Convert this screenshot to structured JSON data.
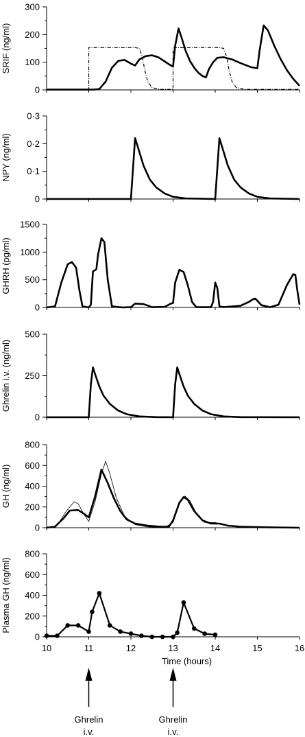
{
  "chart_data": [
    {
      "type": "line",
      "ylabel": "SRIF (ng/ml)",
      "ylim": [
        0,
        300
      ],
      "yticks": [
        0,
        100,
        200,
        300
      ],
      "xlim": [
        10,
        16
      ],
      "series": [
        {
          "style": "solid",
          "points": [
            [
              10,
              1
            ],
            [
              10.8,
              1
            ],
            [
              11.1,
              1
            ],
            [
              11.25,
              3
            ],
            [
              11.4,
              30
            ],
            [
              11.55,
              80
            ],
            [
              11.7,
              105
            ],
            [
              11.85,
              108
            ],
            [
              12.0,
              95
            ],
            [
              12.1,
              88
            ],
            [
              12.2,
              110
            ],
            [
              12.35,
              122
            ],
            [
              12.5,
              125
            ],
            [
              12.65,
              118
            ],
            [
              12.8,
              103
            ],
            [
              12.95,
              88
            ],
            [
              13.0,
              85
            ],
            [
              13.05,
              160
            ],
            [
              13.13,
              222
            ],
            [
              13.2,
              190
            ],
            [
              13.3,
              140
            ],
            [
              13.4,
              105
            ],
            [
              13.5,
              80
            ],
            [
              13.6,
              62
            ],
            [
              13.7,
              50
            ],
            [
              13.78,
              45
            ],
            [
              13.85,
              75
            ],
            [
              13.95,
              100
            ],
            [
              14.05,
              116
            ],
            [
              14.2,
              118
            ],
            [
              14.4,
              110
            ],
            [
              14.6,
              97
            ],
            [
              14.85,
              82
            ],
            [
              15.0,
              78
            ],
            [
              15.05,
              140
            ],
            [
              15.15,
              233
            ],
            [
              15.25,
              215
            ],
            [
              15.4,
              160
            ],
            [
              15.55,
              112
            ],
            [
              15.7,
              72
            ],
            [
              15.85,
              40
            ],
            [
              16.0,
              15
            ]
          ]
        },
        {
          "style": "dashdot",
          "points": [
            [
              10,
              1
            ],
            [
              11.0,
              1
            ],
            [
              11.0,
              153
            ],
            [
              12.1,
              153
            ],
            [
              12.2,
              150
            ],
            [
              12.27,
              120
            ],
            [
              12.33,
              70
            ],
            [
              12.4,
              30
            ],
            [
              12.5,
              8
            ],
            [
              12.7,
              2
            ],
            [
              13.0,
              2
            ],
            [
              13.0,
              153
            ],
            [
              14.1,
              153
            ],
            [
              14.2,
              150
            ],
            [
              14.27,
              120
            ],
            [
              14.33,
              70
            ],
            [
              14.4,
              30
            ],
            [
              14.5,
              8
            ],
            [
              14.7,
              2
            ],
            [
              16,
              2
            ]
          ]
        }
      ]
    },
    {
      "type": "line",
      "ylabel": "NPY (ng/ml)",
      "ylim": [
        0,
        0.3
      ],
      "yticks": [
        0,
        0.1,
        0.2,
        0.3
      ],
      "ytick_labels": [
        "0",
        "0·1",
        "0·2",
        "0·3"
      ],
      "xlim": [
        10,
        16
      ],
      "series": [
        {
          "style": "solid",
          "points": [
            [
              10,
              0
            ],
            [
              12.0,
              0
            ],
            [
              12.1,
              0.22
            ],
            [
              12.2,
              0.17
            ],
            [
              12.3,
              0.12
            ],
            [
              12.45,
              0.07
            ],
            [
              12.6,
              0.042
            ],
            [
              12.8,
              0.02
            ],
            [
              13.0,
              0.008
            ],
            [
              13.3,
              0.002
            ],
            [
              14.0,
              0
            ],
            [
              14.1,
              0.22
            ],
            [
              14.2,
              0.17
            ],
            [
              14.3,
              0.12
            ],
            [
              14.45,
              0.07
            ],
            [
              14.6,
              0.042
            ],
            [
              14.8,
              0.02
            ],
            [
              15.0,
              0.008
            ],
            [
              15.3,
              0.002
            ],
            [
              16,
              0
            ]
          ]
        }
      ]
    },
    {
      "type": "line",
      "ylabel": "GHRH (pg/ml)",
      "ylim": [
        0,
        1500
      ],
      "yticks": [
        0,
        500,
        1000,
        1500
      ],
      "xlim": [
        10,
        16
      ],
      "series": [
        {
          "style": "solid",
          "points": [
            [
              10,
              0
            ],
            [
              10.2,
              20
            ],
            [
              10.35,
              450
            ],
            [
              10.5,
              780
            ],
            [
              10.6,
              820
            ],
            [
              10.7,
              720
            ],
            [
              10.78,
              300
            ],
            [
              10.85,
              20
            ],
            [
              11.0,
              0
            ],
            [
              11.05,
              50
            ],
            [
              11.1,
              650
            ],
            [
              11.18,
              690
            ],
            [
              11.22,
              950
            ],
            [
              11.3,
              1250
            ],
            [
              11.37,
              1180
            ],
            [
              11.45,
              500
            ],
            [
              11.55,
              20
            ],
            [
              11.8,
              0
            ],
            [
              12.0,
              5
            ],
            [
              12.1,
              70
            ],
            [
              12.3,
              60
            ],
            [
              12.45,
              20
            ],
            [
              12.5,
              5
            ],
            [
              12.8,
              10
            ],
            [
              12.95,
              70
            ],
            [
              13.0,
              80
            ],
            [
              13.05,
              450
            ],
            [
              13.15,
              680
            ],
            [
              13.25,
              640
            ],
            [
              13.35,
              400
            ],
            [
              13.45,
              100
            ],
            [
              13.55,
              5
            ],
            [
              13.9,
              5
            ],
            [
              13.95,
              100
            ],
            [
              14.0,
              450
            ],
            [
              14.05,
              350
            ],
            [
              14.1,
              20
            ],
            [
              14.2,
              5
            ],
            [
              14.6,
              30
            ],
            [
              14.8,
              100
            ],
            [
              14.9,
              150
            ],
            [
              14.95,
              160
            ],
            [
              15.0,
              120
            ],
            [
              15.1,
              40
            ],
            [
              15.3,
              5
            ],
            [
              15.5,
              50
            ],
            [
              15.7,
              400
            ],
            [
              15.85,
              600
            ],
            [
              15.9,
              590
            ],
            [
              15.95,
              300
            ],
            [
              16.0,
              50
            ]
          ]
        }
      ]
    },
    {
      "type": "line",
      "ylabel": "Ghrelin i.v. (ng/ml)",
      "ylim": [
        0,
        500
      ],
      "yticks": [
        0,
        250,
        500
      ],
      "xlim": [
        10,
        16
      ],
      "series": [
        {
          "style": "solid",
          "points": [
            [
              10,
              0
            ],
            [
              11.0,
              0
            ],
            [
              11.05,
              200
            ],
            [
              11.1,
              300
            ],
            [
              11.15,
              260
            ],
            [
              11.25,
              185
            ],
            [
              11.35,
              130
            ],
            [
              11.5,
              80
            ],
            [
              11.7,
              40
            ],
            [
              11.9,
              18
            ],
            [
              12.2,
              5
            ],
            [
              12.6,
              1
            ],
            [
              13.0,
              0
            ],
            [
              13.05,
              200
            ],
            [
              13.1,
              300
            ],
            [
              13.15,
              260
            ],
            [
              13.25,
              185
            ],
            [
              13.35,
              130
            ],
            [
              13.5,
              80
            ],
            [
              13.7,
              40
            ],
            [
              13.9,
              18
            ],
            [
              14.2,
              5
            ],
            [
              14.6,
              1
            ],
            [
              16,
              0
            ]
          ]
        }
      ]
    },
    {
      "type": "line",
      "ylabel": "GH (ng/ml)",
      "ylim": [
        0,
        800
      ],
      "yticks": [
        0,
        200,
        400,
        600,
        800
      ],
      "xlim": [
        10,
        16
      ],
      "series": [
        {
          "style": "solid",
          "points": [
            [
              10,
              0
            ],
            [
              10.2,
              10
            ],
            [
              10.4,
              90
            ],
            [
              10.55,
              165
            ],
            [
              10.75,
              170
            ],
            [
              10.9,
              130
            ],
            [
              11.0,
              100
            ],
            [
              11.15,
              300
            ],
            [
              11.3,
              560
            ],
            [
              11.45,
              430
            ],
            [
              11.6,
              280
            ],
            [
              11.75,
              160
            ],
            [
              11.9,
              80
            ],
            [
              12.1,
              40
            ],
            [
              12.4,
              20
            ],
            [
              12.7,
              10
            ],
            [
              12.9,
              10
            ],
            [
              13.0,
              70
            ],
            [
              13.15,
              240
            ],
            [
              13.25,
              295
            ],
            [
              13.35,
              270
            ],
            [
              13.5,
              160
            ],
            [
              13.7,
              70
            ],
            [
              13.9,
              40
            ],
            [
              14.1,
              40
            ],
            [
              14.3,
              20
            ],
            [
              14.6,
              10
            ],
            [
              15.0,
              5
            ],
            [
              16,
              0
            ]
          ]
        },
        {
          "style": "thin",
          "points": [
            [
              10,
              0
            ],
            [
              10.25,
              20
            ],
            [
              10.45,
              150
            ],
            [
              10.65,
              250
            ],
            [
              10.75,
              230
            ],
            [
              10.9,
              120
            ],
            [
              11.0,
              60
            ],
            [
              11.15,
              250
            ],
            [
              11.3,
              520
            ],
            [
              11.4,
              640
            ],
            [
              11.5,
              520
            ],
            [
              11.65,
              290
            ],
            [
              11.85,
              110
            ],
            [
              12.1,
              30
            ],
            [
              12.4,
              8
            ],
            [
              12.8,
              2
            ],
            [
              13.0,
              50
            ],
            [
              13.15,
              230
            ],
            [
              13.28,
              305
            ],
            [
              13.4,
              260
            ],
            [
              13.55,
              140
            ],
            [
              13.75,
              50
            ],
            [
              14.0,
              50
            ],
            [
              14.3,
              15
            ],
            [
              14.6,
              5
            ],
            [
              16,
              0
            ]
          ]
        }
      ]
    },
    {
      "type": "scatter",
      "ylabel": "Plasma GH (ng/ml)",
      "ylim": [
        0,
        800
      ],
      "yticks": [
        0,
        200,
        400,
        600,
        800
      ],
      "xlim": [
        10,
        16
      ],
      "xticks": [
        10,
        11,
        12,
        13,
        14,
        15,
        16
      ],
      "xlabel": "Time (hours)",
      "series": [
        {
          "style": "markers",
          "points": [
            [
              10,
              10
            ],
            [
              10.25,
              10
            ],
            [
              10.5,
              110
            ],
            [
              10.75,
              110
            ],
            [
              11.0,
              50
            ],
            [
              11.08,
              240
            ],
            [
              11.25,
              420
            ],
            [
              11.5,
              110
            ],
            [
              11.75,
              50
            ],
            [
              12.0,
              30
            ],
            [
              12.25,
              10
            ],
            [
              12.5,
              0
            ],
            [
              12.75,
              0
            ],
            [
              13.0,
              0
            ],
            [
              13.1,
              40
            ],
            [
              13.25,
              330
            ],
            [
              13.5,
              80
            ],
            [
              13.75,
              30
            ],
            [
              14.0,
              20
            ]
          ]
        }
      ]
    }
  ],
  "annotations": [
    {
      "label_line1": "Ghrelin",
      "label_line2": "i.v.",
      "x": 11
    },
    {
      "label_line1": "Ghrelin",
      "label_line2": "i.v.",
      "x": 13
    }
  ]
}
